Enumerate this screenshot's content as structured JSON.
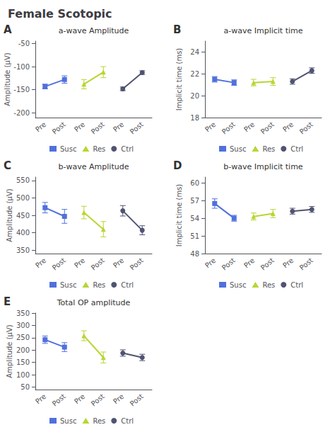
{
  "title": "Female Scotopic",
  "chart_data": [
    {
      "type": "line",
      "title": "a-wave Amplitude",
      "annotations": [
        "A"
      ],
      "y_label": "Amplitude (μV)",
      "categories": [
        "Pre",
        "Post",
        "Pre",
        "Post",
        "Pre",
        "Post"
      ],
      "series": [
        {
          "name": "Susc",
          "marker": "square",
          "values": [
            -143,
            -128,
            null,
            null,
            null,
            null
          ],
          "errors": [
            5,
            8,
            null,
            null,
            null,
            null
          ]
        },
        {
          "name": "Res",
          "marker": "triangle",
          "values": [
            null,
            null,
            -138,
            -112,
            null,
            null
          ],
          "errors": [
            null,
            null,
            10,
            12,
            null,
            null
          ]
        },
        {
          "name": "Ctrl",
          "marker": "circle",
          "values": [
            null,
            null,
            null,
            null,
            -148,
            -113
          ],
          "errors": [
            null,
            null,
            null,
            null,
            4,
            4
          ]
        }
      ],
      "ylim": [
        -210,
        -45
      ],
      "yticks": [
        -200,
        -150,
        -100,
        -50
      ],
      "grid": false,
      "legend": "bottom"
    },
    {
      "type": "line",
      "title": "a-wave Implicit time",
      "annotations": [
        "B"
      ],
      "y_label": "Implicit time (ms)",
      "categories": [
        "Pre",
        "Post",
        "Pre",
        "Post",
        "Pre",
        "Post"
      ],
      "series": [
        {
          "name": "Susc",
          "marker": "square",
          "values": [
            21.5,
            21.2,
            null,
            null,
            null,
            null
          ],
          "errors": [
            0.25,
            0.25,
            null,
            null,
            null,
            null
          ]
        },
        {
          "name": "Res",
          "marker": "triangle",
          "values": [
            null,
            null,
            21.2,
            21.3,
            null,
            null
          ],
          "errors": [
            null,
            null,
            0.3,
            0.35,
            null,
            null
          ]
        },
        {
          "name": "Ctrl",
          "marker": "circle",
          "values": [
            null,
            null,
            null,
            null,
            21.3,
            22.3
          ],
          "errors": [
            null,
            null,
            null,
            null,
            0.25,
            0.25
          ]
        }
      ],
      "ylim": [
        18,
        25
      ],
      "yticks": [
        18,
        20,
        22,
        24
      ],
      "grid": false,
      "legend": "bottom"
    },
    {
      "type": "line",
      "title": "b-wave Amplitude",
      "annotations": [
        "C"
      ],
      "y_label": "Amplitude (μV)",
      "categories": [
        "Pre",
        "Post",
        "Pre",
        "Post",
        "Pre",
        "Post"
      ],
      "series": [
        {
          "name": "Susc",
          "marker": "square",
          "values": [
            472,
            447,
            null,
            null,
            null,
            null
          ],
          "errors": [
            15,
            20,
            null,
            null,
            null,
            null
          ]
        },
        {
          "name": "Res",
          "marker": "triangle",
          "values": [
            null,
            null,
            458,
            410,
            null,
            null
          ],
          "errors": [
            null,
            null,
            18,
            22,
            null,
            null
          ]
        },
        {
          "name": "Ctrl",
          "marker": "circle",
          "values": [
            null,
            null,
            null,
            null,
            463,
            407
          ],
          "errors": [
            null,
            null,
            null,
            null,
            15,
            13
          ]
        }
      ],
      "ylim": [
        340,
        560
      ],
      "yticks": [
        350,
        400,
        450,
        500,
        550
      ],
      "grid": false,
      "legend": "bottom"
    },
    {
      "type": "line",
      "title": "b-wave Implicit time",
      "annotations": [
        "D"
      ],
      "y_label": "Implicit time (ms)",
      "categories": [
        "Pre",
        "Post",
        "Pre",
        "Post",
        "Pre",
        "Post"
      ],
      "series": [
        {
          "name": "Susc",
          "marker": "square",
          "values": [
            56.5,
            54.0,
            null,
            null,
            null,
            null
          ],
          "errors": [
            0.8,
            0.5,
            null,
            null,
            null,
            null
          ]
        },
        {
          "name": "Res",
          "marker": "triangle",
          "values": [
            null,
            null,
            54.3,
            54.8,
            null,
            null
          ],
          "errors": [
            null,
            null,
            0.6,
            0.7,
            null,
            null
          ]
        },
        {
          "name": "Ctrl",
          "marker": "circle",
          "values": [
            null,
            null,
            null,
            null,
            55.2,
            55.5
          ],
          "errors": [
            null,
            null,
            null,
            null,
            0.5,
            0.5
          ]
        }
      ],
      "ylim": [
        48,
        61
      ],
      "yticks": [
        48,
        51,
        54,
        57,
        60
      ],
      "grid": false,
      "legend": "bottom"
    },
    {
      "type": "line",
      "title": "Total OP amplitude",
      "annotations": [
        "E"
      ],
      "y_label": "Amplitude (μV)",
      "categories": [
        "Pre",
        "Post",
        "Pre",
        "Post",
        "Pre",
        "Post"
      ],
      "series": [
        {
          "name": "Susc",
          "marker": "square",
          "values": [
            242,
            212,
            null,
            null,
            null,
            null
          ],
          "errors": [
            15,
            18,
            null,
            null,
            null,
            null
          ]
        },
        {
          "name": "Res",
          "marker": "triangle",
          "values": [
            null,
            null,
            258,
            170,
            null,
            null
          ],
          "errors": [
            null,
            null,
            20,
            22,
            null,
            null
          ]
        },
        {
          "name": "Ctrl",
          "marker": "circle",
          "values": [
            null,
            null,
            null,
            null,
            188,
            170
          ],
          "errors": [
            null,
            null,
            null,
            null,
            13,
            13
          ]
        }
      ],
      "ylim": [
        40,
        350
      ],
      "yticks": [
        50,
        100,
        150,
        200,
        250,
        300,
        350
      ],
      "grid": false,
      "legend": "bottom"
    }
  ]
}
